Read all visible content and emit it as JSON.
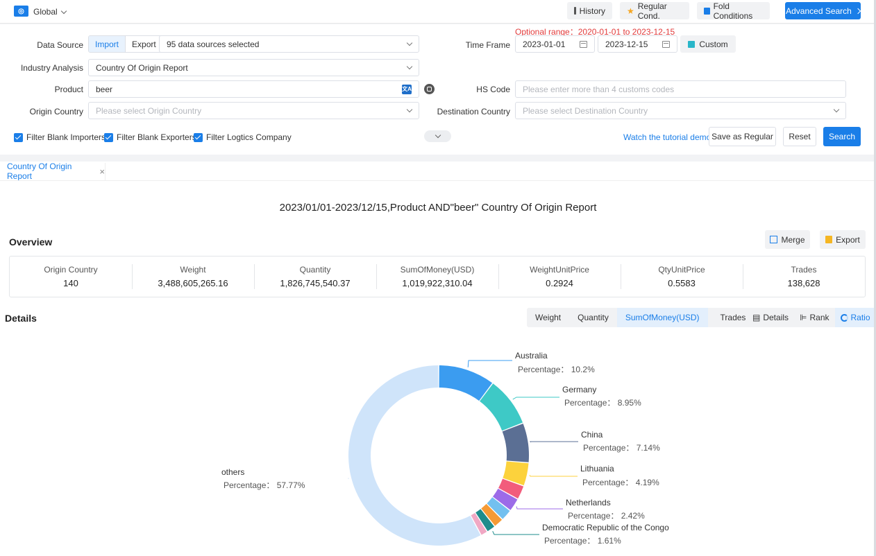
{
  "topbar": {
    "global_label": "Global",
    "history": "History",
    "regular_cond": "Regular Cond.",
    "fold_conditions": "Fold Conditions",
    "advanced_search": "Advanced Search"
  },
  "filters": {
    "optional_range_label": "Optional range：",
    "optional_range_value": "2020-01-01 to 2023-12-15",
    "data_source_label": "Data Source",
    "import": "Import",
    "export": "Export",
    "data_source_value": "95 data sources selected",
    "time_frame_label": "Time Frame",
    "date_start": "2023-01-01",
    "date_end": "2023-12-15",
    "custom": "Custom",
    "industry_label": "Industry Analysis",
    "industry_value": "Country Of Origin Report",
    "product_label": "Product",
    "product_value": "beer",
    "hs_label": "HS Code",
    "hs_placeholder": "Please enter more than 4 customs codes",
    "origin_label": "Origin Country",
    "origin_placeholder": "Please select Origin Country",
    "dest_label": "Destination Country",
    "dest_placeholder": "Please select Destination Country",
    "cb_importers": "Filter Blank Importers",
    "cb_exporters": "Filter Blank Exporters",
    "cb_logistics": "Filter Logtics Company",
    "tutorial": "Watch the tutorial demo",
    "save_regular": "Save as Regular",
    "reset": "Reset",
    "search": "Search"
  },
  "report": {
    "tab": "Country Of Origin Report",
    "title": "2023/01/01-2023/12/15,Product AND\"beer\" Country Of Origin Report",
    "overview": "Overview",
    "merge": "Merge",
    "export": "Export",
    "stats": [
      {
        "k": "Origin Country",
        "v": "140"
      },
      {
        "k": "Weight",
        "v": "3,488,605,265.16"
      },
      {
        "k": "Quantity",
        "v": "1,826,745,540.37"
      },
      {
        "k": "SumOfMoney(USD)",
        "v": "1,019,922,310.04"
      },
      {
        "k": "WeightUnitPrice",
        "v": "0.2924"
      },
      {
        "k": "QtyUnitPrice",
        "v": "0.5583"
      },
      {
        "k": "Trades",
        "v": "138,628"
      }
    ],
    "details": "Details",
    "metrics": [
      "Weight",
      "Quantity",
      "SumOfMoney(USD)",
      "Trades"
    ],
    "views": [
      "Details",
      "Rank",
      "Ratio"
    ]
  },
  "chart_data": {
    "type": "pie",
    "variant": "donut",
    "slices": [
      {
        "name": "Australia",
        "value": 10.2,
        "color": "#3b9cf0",
        "labeled": true
      },
      {
        "name": "Germany",
        "value": 8.95,
        "color": "#3ec9c6",
        "labeled": true
      },
      {
        "name": "China",
        "value": 7.14,
        "color": "#5b6f94",
        "labeled": true
      },
      {
        "name": "Lithuania",
        "value": 4.19,
        "color": "#fcd23c",
        "labeled": true
      },
      {
        "name": "",
        "value": 2.55,
        "color": "#f25c7c",
        "labeled": false
      },
      {
        "name": "Netherlands",
        "value": 2.42,
        "color": "#9c6be8",
        "labeled": true
      },
      {
        "name": "",
        "value": 2.1,
        "color": "#73c0ef",
        "labeled": false
      },
      {
        "name": "",
        "value": 1.8,
        "color": "#f59a35",
        "labeled": false
      },
      {
        "name": "Democratic Republic of the Congo",
        "value": 1.61,
        "color": "#1e8c8c",
        "labeled": true
      },
      {
        "name": "",
        "value": 1.27,
        "color": "#f0a8c4",
        "labeled": false
      },
      {
        "name": "others",
        "value": 57.77,
        "color": "#cfe4fa",
        "labeled": true
      }
    ],
    "label_prefix": "Percentage："
  }
}
